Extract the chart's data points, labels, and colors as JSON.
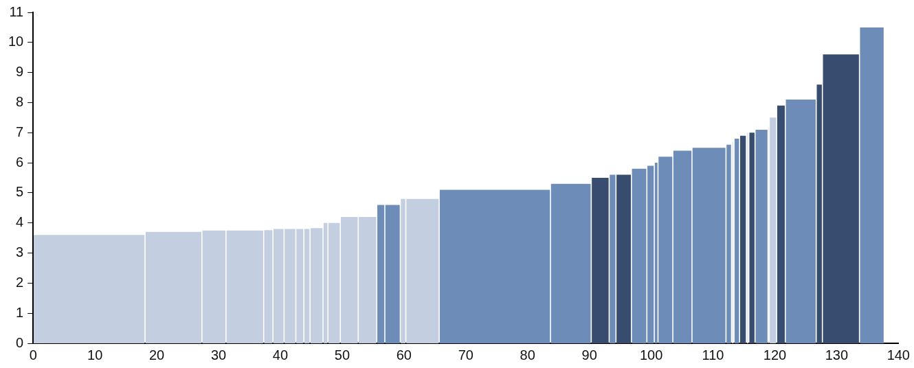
{
  "chart_data": {
    "type": "histogram",
    "bins": [
      0,
      18.1,
      27.3,
      31.2,
      37.3,
      38.8,
      40.6,
      42.5,
      43.8,
      44.8,
      46.9,
      47.7,
      49.7,
      52.6,
      55.6,
      56.9,
      59.4,
      60.3,
      65.7,
      83.7,
      90.3,
      93.2,
      94.3,
      96.8,
      99.3,
      100.5,
      101.1,
      103.5,
      106.6,
      112.1,
      113.0,
      113.4,
      114.3,
      115.4,
      115.8,
      116.8,
      118.9,
      119.1,
      120.3,
      121.7,
      126.7,
      127.7,
      133.7,
      137.7
    ],
    "values": [
      3.6,
      3.7,
      3.75,
      3.75,
      3.76,
      3.8,
      3.8,
      3.8,
      3.8,
      3.83,
      4.0,
      4.0,
      4.2,
      4.2,
      4.6,
      4.6,
      4.8,
      4.8,
      5.1,
      5.3,
      5.5,
      5.6,
      5.6,
      5.8,
      5.9,
      6.0,
      6.2,
      6.4,
      6.5,
      6.6,
      6.7,
      6.8,
      6.9,
      7.0,
      7.0,
      7.1,
      7.2,
      7.5,
      7.9,
      8.1,
      8.6,
      9.6,
      10.5
    ],
    "colors": [
      "#c3cee0",
      "#c3cee0",
      "#c3cee0",
      "#c3cee0",
      "#c3cee0",
      "#c3cee0",
      "#c3cee0",
      "#c3cee0",
      "#c3cee0",
      "#c3cee0",
      "#c3cee0",
      "#c3cee0",
      "#c3cee0",
      "#c3cee0",
      "#6d8cb8",
      "#6d8cb8",
      "#c3cee0",
      "#c3cee0",
      "#6d8cb8",
      "#6d8cb8",
      "#374c6e",
      "#6d8cb8",
      "#374c6e",
      "#6d8cb8",
      "#6d8cb8",
      "#6d8cb8",
      "#6d8cb8",
      "#6d8cb8",
      "#6d8cb8",
      "#6d8cb8",
      "#e2e8f1",
      "#6d8cb8",
      "#374c6e",
      "#e2e8f1",
      "#374c6e",
      "#6d8cb8",
      "#e2e8f1",
      "#c3cee0",
      "#374c6e",
      "#6d8cb8",
      "#374c6e",
      "#374c6e",
      "#6d8cb8"
    ],
    "xlim": [
      0,
      140
    ],
    "xticks": [
      0,
      10,
      20,
      30,
      40,
      50,
      60,
      70,
      80,
      90,
      100,
      110,
      120,
      130,
      140
    ],
    "ylim": [
      0,
      11
    ],
    "yticks": [
      0,
      1,
      2,
      3,
      4,
      5,
      6,
      7,
      8,
      9,
      10,
      11
    ],
    "grid": false,
    "legend": false
  }
}
